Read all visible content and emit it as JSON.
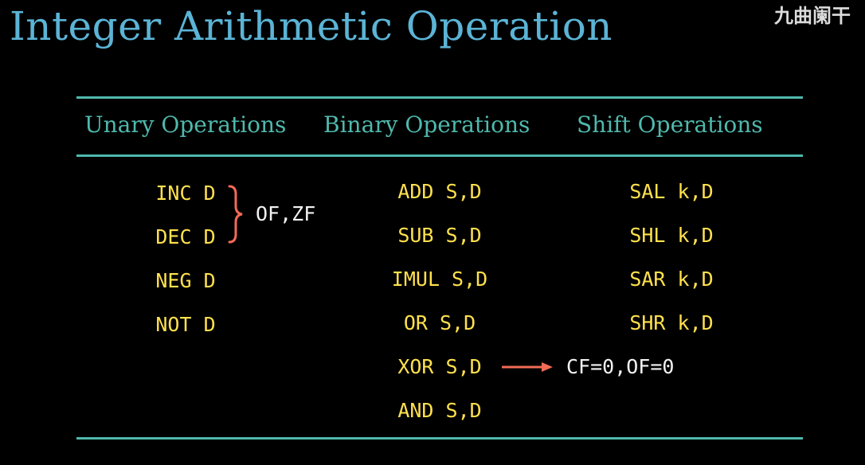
{
  "title": "Integer Arithmetic Operation",
  "watermark": "九曲阑干",
  "columns": [
    {
      "header": "Unary Operations",
      "items": [
        "INC D",
        "DEC D",
        "NEG D",
        "NOT D"
      ]
    },
    {
      "header": "Binary Operations",
      "items": [
        "ADD S,D",
        "SUB S,D",
        "IMUL S,D",
        "OR S,D",
        "XOR S,D",
        "AND S,D"
      ]
    },
    {
      "header": "Shift Operations",
      "items": [
        "SAL k,D",
        "SHL k,D",
        "SAR k,D",
        "SHR k,D"
      ]
    }
  ],
  "annotations": {
    "inc_dec_flags": "OF,ZF",
    "xor_flags": "CF=0,OF=0"
  },
  "colors": {
    "title": "#5bb4d6",
    "header": "#4fb9ad",
    "code": "#ffe14d",
    "annotation_mark": "#f26b55"
  }
}
